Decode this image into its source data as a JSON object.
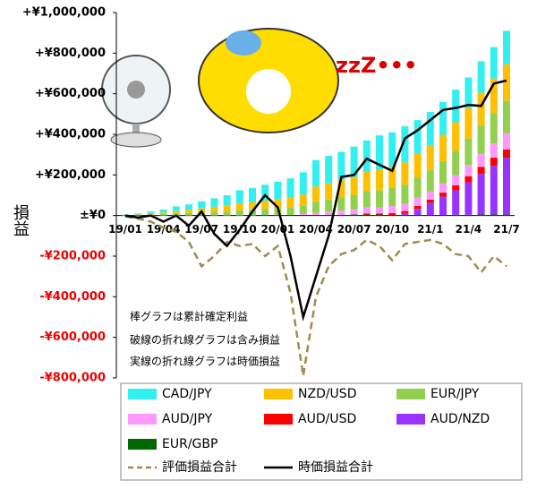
{
  "chart_data": {
    "type": "bar",
    "ylabel": "損益",
    "decoration_text": "zzZ•••",
    "annotations": [
      "棒グラフは累計確定利益",
      "破線の折れ線グラフは含み損益",
      "実線の折れ線グラフは時価損益"
    ],
    "ylim": [
      -800000,
      1000000
    ],
    "yticks": [
      {
        "value": 1000000,
        "label": "+¥1,000,000"
      },
      {
        "value": 800000,
        "label": "+¥800,000"
      },
      {
        "value": 600000,
        "label": "+¥600,000"
      },
      {
        "value": 400000,
        "label": "+¥400,000"
      },
      {
        "value": 200000,
        "label": "+¥200,000"
      },
      {
        "value": 0,
        "label": "±¥0"
      },
      {
        "value": -200000,
        "label": "-¥200,000"
      },
      {
        "value": -400000,
        "label": "-¥400,000"
      },
      {
        "value": -600000,
        "label": "-¥600,000"
      },
      {
        "value": -800000,
        "label": "-¥800,000"
      }
    ],
    "categories": [
      "19/01",
      null,
      null,
      "19/04",
      null,
      null,
      "19/07",
      null,
      null,
      "19/10",
      null,
      null,
      "20/01",
      null,
      null,
      "20/04",
      null,
      null,
      "20/07",
      null,
      null,
      "20/10",
      null,
      null,
      "21/1",
      null,
      null,
      "21/4",
      null,
      null,
      "21/7"
    ],
    "series": [
      {
        "name": "CAD/JPY",
        "color": "#33f0f0",
        "values": [
          5000,
          5000,
          10000,
          15000,
          23000,
          28000,
          35000,
          42000,
          50000,
          65000,
          70000,
          80000,
          85000,
          92000,
          110000,
          130000,
          135000,
          140000,
          150000,
          155000,
          170000,
          168000,
          178000,
          167000,
          167000,
          162000,
          161000,
          151000,
          155000,
          155000,
          165000
        ]
      },
      {
        "name": "NZD/USD",
        "color": "#ffc000",
        "values": [
          0,
          3000,
          5000,
          7000,
          12000,
          15000,
          20000,
          25000,
          30000,
          35000,
          37000,
          40000,
          45000,
          50000,
          55000,
          75000,
          80000,
          85000,
          90000,
          95000,
          100000,
          105000,
          110000,
          115000,
          120000,
          130000,
          140000,
          150000,
          160000,
          170000,
          180000
        ]
      },
      {
        "name": "EUR/JPY",
        "color": "#92d050",
        "values": [
          0,
          2000,
          5000,
          8000,
          10000,
          12000,
          15000,
          18000,
          20000,
          25000,
          28000,
          30000,
          35000,
          38000,
          40000,
          55000,
          60000,
          65000,
          70000,
          80000,
          85000,
          90000,
          95000,
          100000,
          105000,
          110000,
          120000,
          130000,
          140000,
          150000,
          160000
        ]
      },
      {
        "name": "AUD/JPY",
        "color": "#ff99ff",
        "values": [
          0,
          0,
          0,
          0,
          0,
          0,
          0,
          0,
          0,
          0,
          0,
          0,
          0,
          0,
          5000,
          10000,
          15000,
          20000,
          25000,
          30000,
          30000,
          35000,
          35000,
          40000,
          40000,
          45000,
          50000,
          55000,
          65000,
          70000,
          80000
        ]
      },
      {
        "name": "AUD/USD",
        "color": "#ff0000",
        "values": [
          0,
          0,
          0,
          0,
          0,
          0,
          0,
          0,
          0,
          0,
          0,
          0,
          0,
          0,
          0,
          0,
          0,
          0,
          0,
          5000,
          5000,
          10000,
          10000,
          15000,
          15000,
          20000,
          25000,
          30000,
          35000,
          40000,
          40000
        ]
      },
      {
        "name": "AUD/NZD",
        "color": "#9933ff",
        "values": [
          0,
          0,
          0,
          0,
          0,
          0,
          0,
          0,
          0,
          0,
          0,
          0,
          0,
          0,
          0,
          0,
          0,
          0,
          0,
          0,
          0,
          0,
          10000,
          30000,
          60000,
          90000,
          120000,
          160000,
          200000,
          240000,
          280000
        ]
      },
      {
        "name": "EUR/GBP",
        "color": "#006600",
        "values": [
          0,
          0,
          0,
          0,
          0,
          0,
          0,
          0,
          0,
          0,
          0,
          2000,
          2000,
          3000,
          3000,
          3000,
          4000,
          4000,
          5000,
          5000,
          5000,
          2000,
          2000,
          3000,
          3000,
          3000,
          4000,
          4000,
          5000,
          5000,
          5000
        ]
      },
      {
        "name": "評価損益合計",
        "color": "#9e8c50",
        "line": "dashed",
        "values": [
          -5000,
          -15000,
          -30000,
          -60000,
          -80000,
          -130000,
          -250000,
          -200000,
          -130000,
          -150000,
          -140000,
          -200000,
          -150000,
          -380000,
          -790000,
          -400000,
          -250000,
          -190000,
          -170000,
          -120000,
          -150000,
          -220000,
          -140000,
          -130000,
          -120000,
          -140000,
          -190000,
          -200000,
          -280000,
          -200000,
          -250000
        ]
      },
      {
        "name": "時価損益合計",
        "color": "#000000",
        "line": "solid",
        "values": [
          0,
          -10000,
          0,
          -30000,
          0,
          -50000,
          20000,
          -90000,
          -150000,
          -70000,
          20000,
          100000,
          40000,
          -200000,
          -500000,
          -300000,
          -100000,
          190000,
          200000,
          280000,
          250000,
          220000,
          380000,
          420000,
          470000,
          520000,
          530000,
          545000,
          540000,
          650000,
          665000
        ]
      }
    ]
  }
}
